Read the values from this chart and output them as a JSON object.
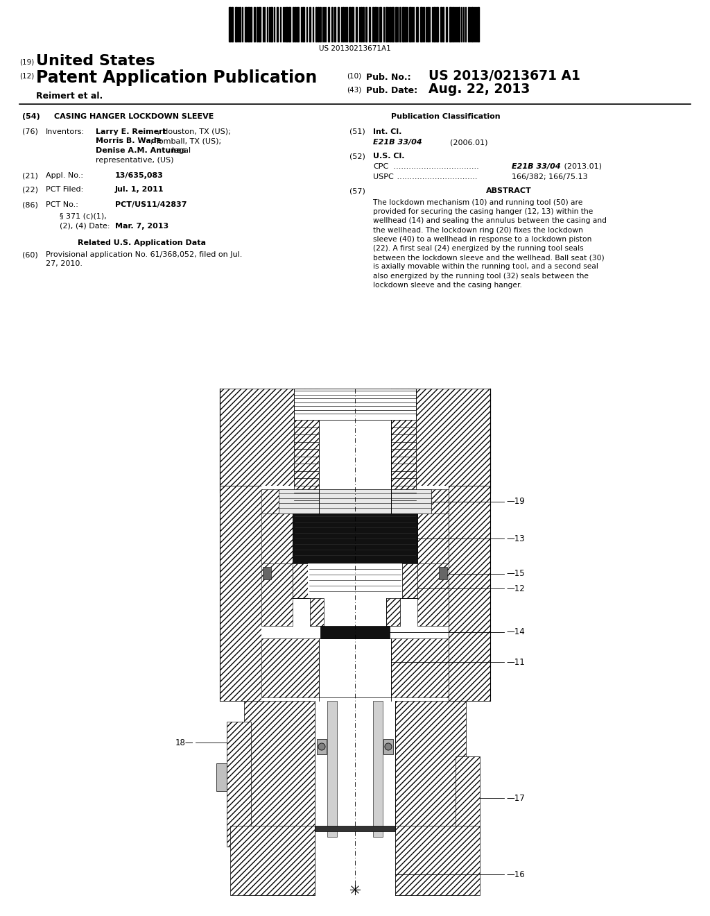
{
  "bg_color": "#ffffff",
  "barcode_text": "US 20130213671A1",
  "title_19_text": "United States",
  "title_12_text": "Patent Application Publication",
  "pub_no_label": "(10)  Pub. No.:",
  "pub_no_value": "US 2013/0213671 A1",
  "inventors_label": "Reimert et al.",
  "pub_date_label": "(43)  Pub. Date:",
  "pub_date_value": "Aug. 22, 2013",
  "field_54_label": "(54)",
  "field_54_text": "CASING HANGER LOCKDOWN SLEEVE",
  "pub_class_header": "Publication Classification",
  "field_76_label": "(76)",
  "field_76_pre": "Inventors:",
  "field_51_label": "(51)",
  "field_51_pre": "Int. Cl.",
  "field_51_class": "E21B 33/04",
  "field_51_year": "(2006.01)",
  "field_52_label": "(52)",
  "field_52_pre": "U.S. Cl.",
  "field_52_cpc_label": "CPC",
  "field_52_uspc_label": "USPC",
  "field_52_uspc_value": "166/382; 166/75.13",
  "field_21_label": "(21)",
  "field_21_pre": "Appl. No.:",
  "field_21_value": "13/635,083",
  "field_57_label": "(57)",
  "field_57_pre": "ABSTRACT",
  "abstract_lines": [
    "The lockdown mechanism (10) and running tool (50) are",
    "provided for securing the casing hanger (12, 13) within the",
    "wellhead (14) and sealing the annulus between the casing and",
    "the wellhead. The lockdown ring (20) fixes the lockdown",
    "sleeve (40) to a wellhead in response to a lockdown piston",
    "(22). A first seal (24) energized by the running tool seals",
    "between the lockdown sleeve and the wellhead. Ball seat (30)",
    "is axially movable within the running tool, and a second seal",
    "also energized by the running tool (32) seals between the",
    "lockdown sleeve and the casing hanger."
  ],
  "field_22_label": "(22)",
  "field_22_pre": "PCT Filed:",
  "field_22_value": "Jul. 1, 2011",
  "field_86_label": "(86)",
  "field_86_pre": "PCT No.:",
  "field_86_value": "PCT/US11/42837",
  "field_86_sub": "§ 371 (c)(1),",
  "field_86_sub2": "(2), (4) Date:",
  "field_86_sub2_value": "Mar. 7, 2013",
  "field_related": "Related U.S. Application Data",
  "field_60_label": "(60)",
  "field_60_lines": [
    "Provisional application No. 61/368,052, filed on Jul.",
    "27, 2010."
  ]
}
